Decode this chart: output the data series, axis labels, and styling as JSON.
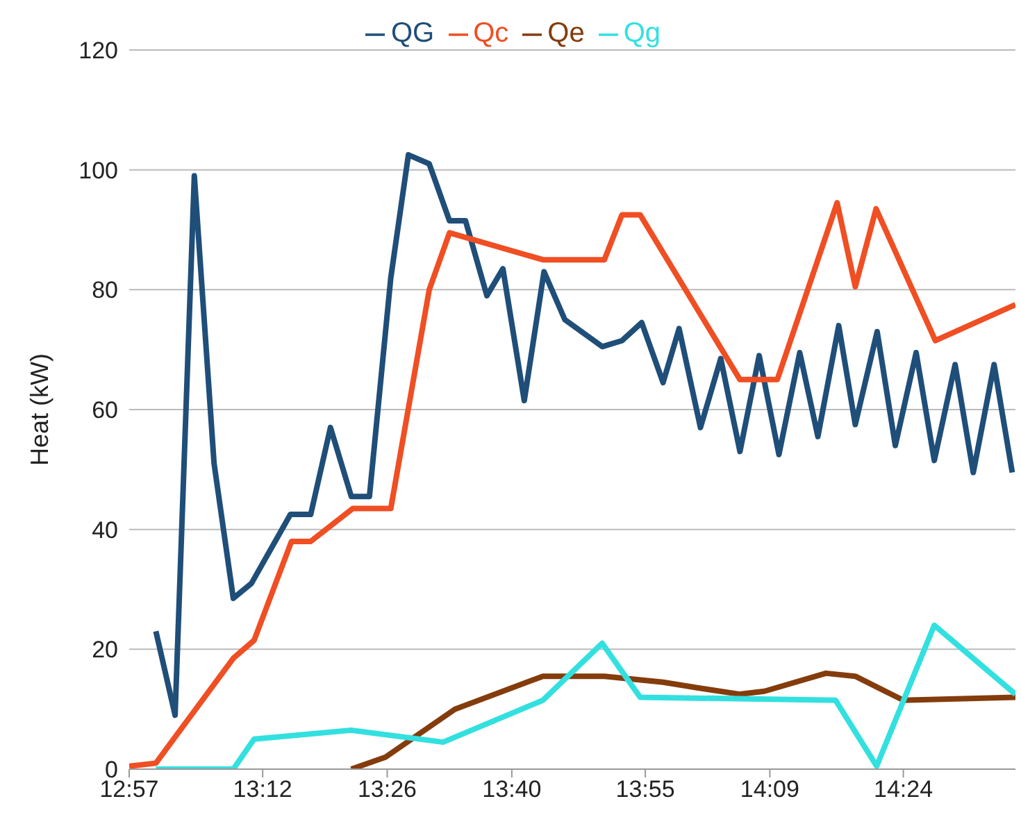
{
  "chart_data": {
    "type": "line",
    "ylabel": "Heat (kW)",
    "xlim": [
      12.95,
      14.61
    ],
    "ylim": [
      0,
      120
    ],
    "yticks": [
      0,
      20,
      40,
      60,
      80,
      100,
      120
    ],
    "xticks": [
      {
        "value": 12.95,
        "label": "12:57"
      },
      {
        "value": 13.2,
        "label": "13:12"
      },
      {
        "value": 13.4333,
        "label": "13:26"
      },
      {
        "value": 13.6667,
        "label": "13:40"
      },
      {
        "value": 13.9167,
        "label": "13:55"
      },
      {
        "value": 14.15,
        "label": "14:09"
      },
      {
        "value": 14.4,
        "label": "14:24"
      }
    ],
    "grid": "y",
    "legend": "top",
    "marker": "none",
    "line_style": "solid",
    "series": [
      {
        "name": "QG",
        "color": "#1f4e79",
        "x": [
          13.0,
          13.036,
          13.072,
          13.109,
          13.145,
          13.179,
          13.252,
          13.29,
          13.327,
          13.366,
          13.4,
          13.44,
          13.473,
          13.512,
          13.55,
          13.58,
          13.62,
          13.65,
          13.69,
          13.727,
          13.766,
          13.836,
          13.873,
          13.91,
          13.95,
          13.98,
          14.02,
          14.058,
          14.094,
          14.13,
          14.167,
          14.206,
          14.24,
          14.279,
          14.31,
          14.351,
          14.385,
          14.424,
          14.458,
          14.497,
          14.531,
          14.57,
          14.604
        ],
        "values": [
          23,
          9,
          99,
          51,
          28.5,
          31,
          42.5,
          42.5,
          57,
          45.5,
          45.5,
          82,
          102.5,
          101,
          91.5,
          91.5,
          79,
          83.5,
          61.5,
          83,
          75,
          70.5,
          71.5,
          74.5,
          64.5,
          73.5,
          57,
          68.5,
          53,
          69,
          52.5,
          69.5,
          55.5,
          74,
          57.5,
          73,
          54,
          69.5,
          51.5,
          67.5,
          49.5,
          67.5,
          49.5
        ]
      },
      {
        "name": "Qc",
        "color": "#f04e23",
        "x": [
          12.95,
          13.0,
          13.145,
          13.184,
          13.254,
          13.29,
          13.369,
          13.44,
          13.512,
          13.55,
          13.725,
          13.84,
          13.873,
          13.907,
          14.094,
          14.164,
          14.276,
          14.31,
          14.349,
          14.46,
          14.61
        ],
        "values": [
          0.5,
          1,
          18.5,
          21.5,
          38,
          38,
          43.5,
          43.5,
          80,
          89.5,
          85,
          85,
          92.5,
          92.5,
          65,
          65,
          94.5,
          80.5,
          93.5,
          71.5,
          77.5
        ]
      },
      {
        "name": "Qe",
        "color": "#843c0c",
        "x": [
          13.366,
          13.43,
          13.56,
          13.65,
          13.725,
          13.84,
          13.95,
          14.02,
          14.094,
          14.14,
          14.255,
          14.31,
          14.4,
          14.61
        ],
        "values": [
          0,
          2,
          10,
          13,
          15.5,
          15.5,
          14.5,
          13.5,
          12.5,
          13,
          16,
          15.5,
          11.5,
          12
        ]
      },
      {
        "name": "Qg",
        "color": "#33e0e0",
        "x": [
          13.0,
          13.145,
          13.184,
          13.366,
          13.538,
          13.725,
          13.836,
          13.907,
          14.273,
          14.35,
          14.458,
          14.61
        ],
        "values": [
          0,
          0,
          5,
          6.5,
          4.5,
          11.5,
          21,
          12,
          11.5,
          0.5,
          24,
          12.5
        ]
      }
    ]
  }
}
